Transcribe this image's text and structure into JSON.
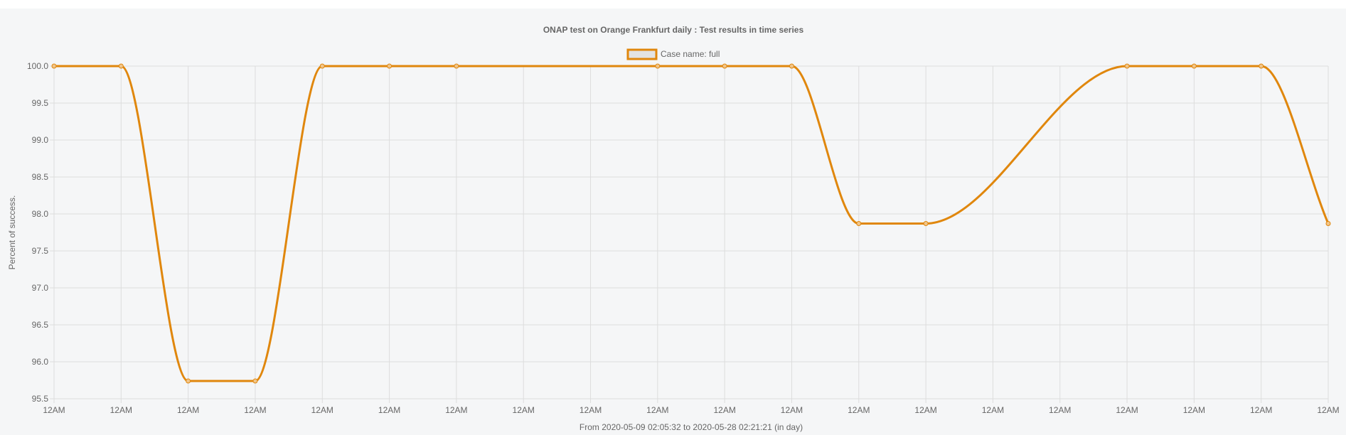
{
  "chart_data": {
    "type": "line",
    "title": "ONAP test on Orange Frankfurt daily : Test results in time series",
    "ylabel": "Percent of success.",
    "xlabel": "From 2020-05-09 02:05:32 to 2020-05-28 02:21:21 (in day)",
    "ylim": [
      95.5,
      100.0
    ],
    "yticks": [
      "100.0",
      "99.5",
      "99.0",
      "98.5",
      "98.0",
      "97.5",
      "97.0",
      "96.5",
      "96.0",
      "95.5"
    ],
    "x_tick_labels": [
      "12AM",
      "12AM",
      "12AM",
      "12AM",
      "12AM",
      "12AM",
      "12AM",
      "12AM",
      "12AM",
      "12AM",
      "12AM",
      "12AM",
      "12AM",
      "12AM",
      "12AM",
      "12AM",
      "12AM",
      "12AM",
      "12AM",
      "12AM"
    ],
    "grid": true,
    "legend_position": "top",
    "colors": {
      "series": "#e0870d",
      "legend_fill": "#e3e3e3"
    },
    "series": [
      {
        "name": "Case name: full",
        "x": [
          "2020-05-09",
          "2020-05-10",
          "2020-05-11",
          "2020-05-12",
          "2020-05-13",
          "2020-05-14",
          "2020-05-15",
          "2020-05-18",
          "2020-05-19",
          "2020-05-20",
          "2020-05-21",
          "2020-05-22",
          "2020-05-25",
          "2020-05-26",
          "2020-05-27",
          "2020-05-28"
        ],
        "day_index": [
          0,
          1,
          2,
          3,
          4,
          5,
          6,
          9,
          10,
          11,
          12,
          13,
          16,
          17,
          18,
          19
        ],
        "values": [
          100.0,
          100.0,
          95.74,
          95.74,
          100.0,
          100.0,
          100.0,
          100.0,
          100.0,
          100.0,
          97.87,
          97.87,
          100.0,
          100.0,
          100.0,
          97.87
        ]
      }
    ]
  }
}
